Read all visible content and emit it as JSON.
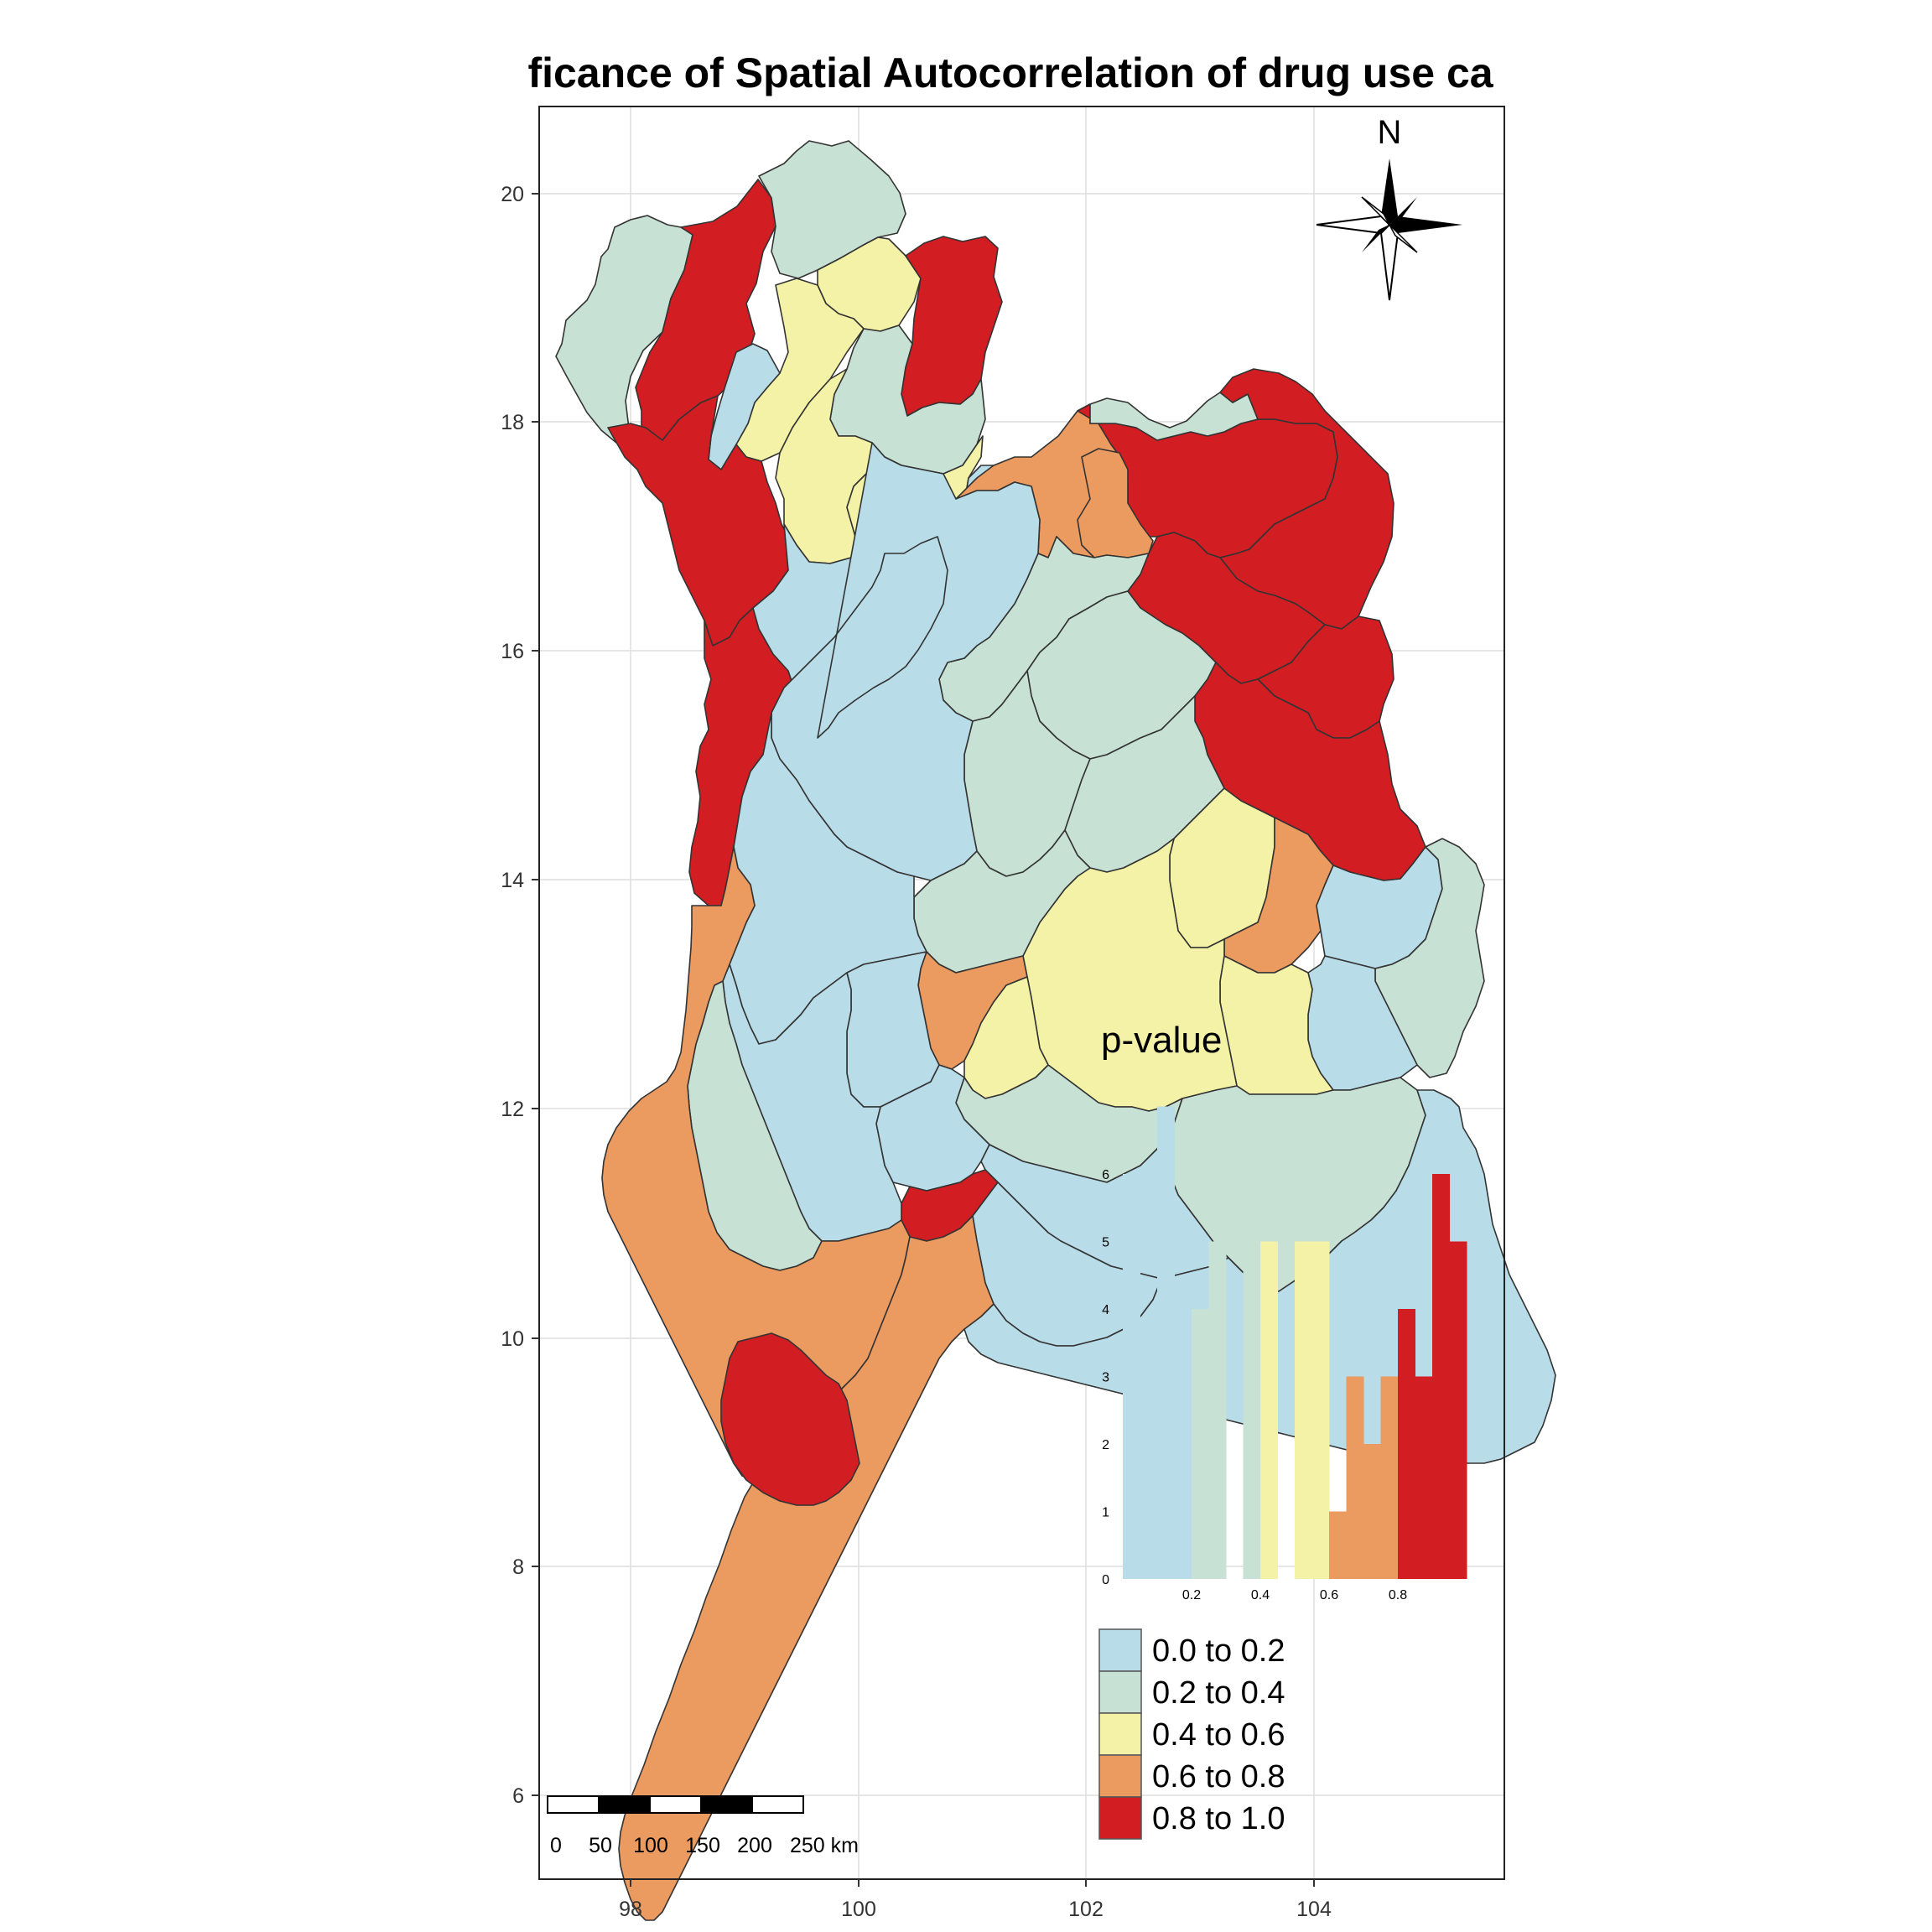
{
  "title": "ficance of Spatial Autocorrelation of drug use ca",
  "x_ticks": [
    "98",
    "100",
    "102",
    "104"
  ],
  "y_ticks": [
    "20",
    "18",
    "16",
    "14",
    "12",
    "10",
    "8",
    "6"
  ],
  "north_label": "N",
  "scale_bar": {
    "labels": [
      "0",
      "50",
      "100",
      "150",
      "200",
      "250 km"
    ]
  },
  "colors": {
    "c1": "#b8dce8",
    "c2": "#c7e2d5",
    "c3": "#f4f2a6",
    "c4": "#eb9a60",
    "c5": "#d21d22"
  },
  "legend": {
    "items": [
      {
        "label": "0.0 to 0.2",
        "color": "#b8dce8"
      },
      {
        "label": "0.2 to 0.4",
        "color": "#c7e2d5"
      },
      {
        "label": "0.4 to 0.6",
        "color": "#f4f2a6"
      },
      {
        "label": "0.6 to 0.8",
        "color": "#eb9a60"
      },
      {
        "label": "0.8 to 1.0",
        "color": "#d21d22"
      }
    ]
  },
  "histogram": {
    "title": "p-value",
    "y_ticks": [
      "0",
      "1",
      "2",
      "3",
      "4",
      "5",
      "6"
    ],
    "x_ticks": [
      "0.2",
      "0.4",
      "0.6",
      "0.8"
    ]
  },
  "chart_data": {
    "type": "bar",
    "title": "p-value",
    "bins": [
      [
        0.0,
        0.05
      ],
      [
        0.05,
        0.1
      ],
      [
        0.1,
        0.15
      ],
      [
        0.15,
        0.2
      ],
      [
        0.2,
        0.25
      ],
      [
        0.25,
        0.3
      ],
      [
        0.3,
        0.35
      ],
      [
        0.35,
        0.4
      ],
      [
        0.4,
        0.45
      ],
      [
        0.45,
        0.5
      ],
      [
        0.5,
        0.55
      ],
      [
        0.55,
        0.6
      ],
      [
        0.6,
        0.65
      ],
      [
        0.65,
        0.7
      ],
      [
        0.7,
        0.75
      ],
      [
        0.75,
        0.8
      ],
      [
        0.8,
        0.85
      ],
      [
        0.85,
        0.9
      ],
      [
        0.9,
        0.95
      ],
      [
        0.95,
        1.0
      ]
    ],
    "values": [
      6,
      3,
      7,
      4,
      4,
      5,
      0,
      6,
      5,
      0,
      5,
      5,
      1,
      3,
      2,
      3,
      4,
      3,
      6,
      5
    ],
    "bin_classes": [
      "c1",
      "c1",
      "c1",
      "c1",
      "c2",
      "c2",
      "c2",
      "c2",
      "c3",
      "c3",
      "c3",
      "c3",
      "c4",
      "c4",
      "c4",
      "c4",
      "c5",
      "c5",
      "c5",
      "c5"
    ],
    "ylim": [
      0,
      7
    ],
    "xlim": [
      0,
      1
    ]
  }
}
